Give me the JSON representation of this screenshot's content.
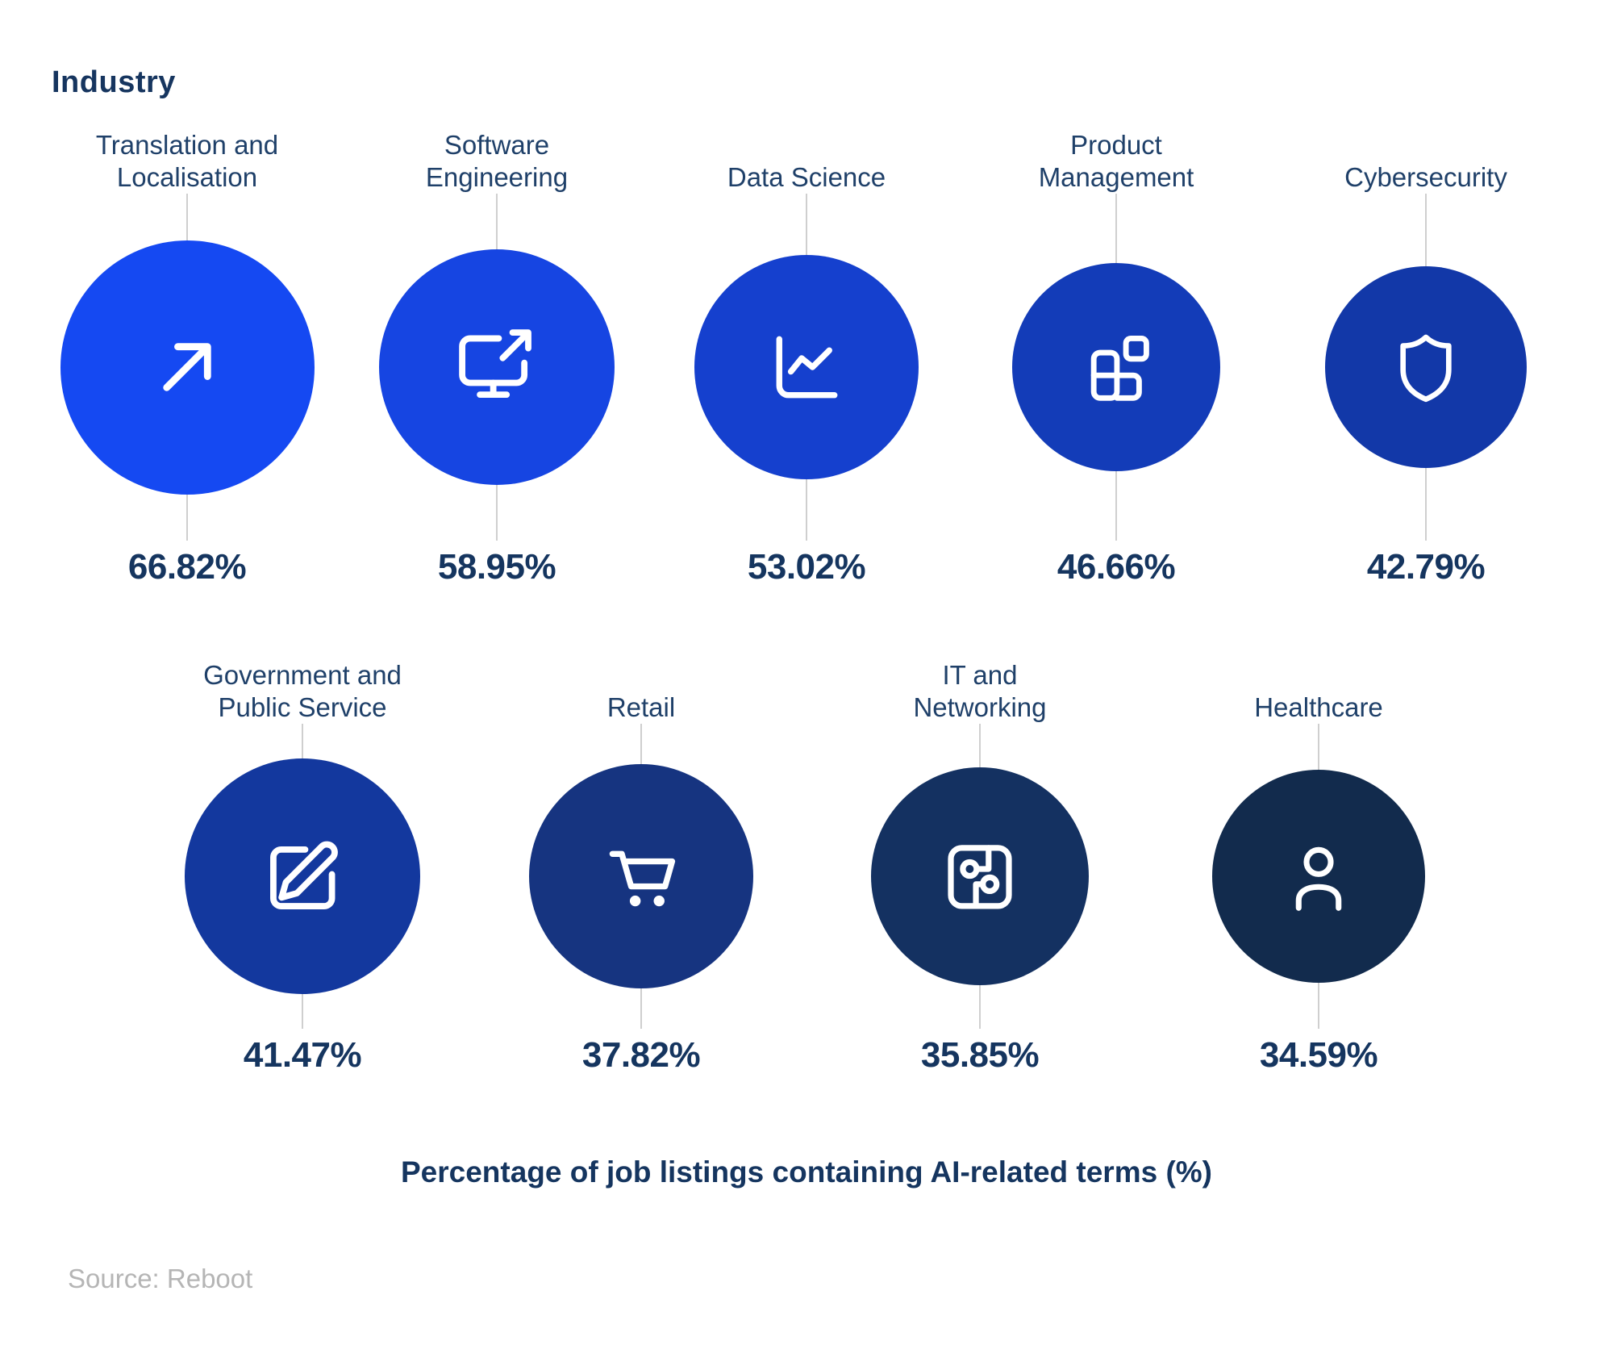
{
  "title": "Industry",
  "caption": "Percentage of job listings containing AI-related terms (%)",
  "source": "Source: Reboot",
  "tick_color": "#cfcfcf",
  "text_colors": {
    "heading": "#16355f",
    "label": "#1f4069",
    "value": "#15355f",
    "source": "#b5b5b5"
  },
  "chart_data": {
    "type": "bubble",
    "title": "Industry",
    "xlabel": "Percentage of job listings containing AI-related terms (%)",
    "legend_position": "none",
    "grid": false,
    "categories": [
      "Translation and Localisation",
      "Software Engineering",
      "Data Science",
      "Product Management",
      "Cybersecurity",
      "Government and Public Service",
      "Retail",
      "IT and Networking",
      "Healthcare"
    ],
    "values": [
      66.82,
      58.95,
      53.02,
      46.66,
      42.79,
      41.47,
      37.82,
      35.85,
      34.59
    ],
    "value_labels": [
      "66.82%",
      "58.95%",
      "53.02%",
      "46.66%",
      "42.79%",
      "41.47%",
      "37.82%",
      "35.85%",
      "34.59%"
    ],
    "colors": [
      "#1549f2",
      "#1645e2",
      "#1540ce",
      "#133cb8",
      "#1238a8",
      "#13389e",
      "#163480",
      "#143161",
      "#122b4d"
    ],
    "icons": [
      "arrow-up-right-icon",
      "monitor-share-icon",
      "line-chart-icon",
      "blocks-icon",
      "shield-icon",
      "edit-icon",
      "cart-icon",
      "circuit-icon",
      "user-icon"
    ],
    "source": "Source: Reboot"
  },
  "rows": [
    {
      "items": [
        {
          "label": "Translation and\nLocalisation",
          "value_text": "66.82%",
          "value": 66.82,
          "color": "#1549f2",
          "icon": "arrow-up-right-icon",
          "diameter": 315
        },
        {
          "label": "Software\nEngineering",
          "value_text": "58.95%",
          "value": 58.95,
          "color": "#1645e2",
          "icon": "monitor-share-icon",
          "diameter": 292
        },
        {
          "label": "Data Science",
          "value_text": "53.02%",
          "value": 53.02,
          "color": "#1540ce",
          "icon": "line-chart-icon",
          "diameter": 278
        },
        {
          "label": "Product\nManagement",
          "value_text": "46.66%",
          "value": 46.66,
          "color": "#133cb8",
          "icon": "blocks-icon",
          "diameter": 258
        },
        {
          "label": "Cybersecurity",
          "value_text": "42.79%",
          "value": 42.79,
          "color": "#1238a8",
          "icon": "shield-icon",
          "diameter": 250
        }
      ]
    },
    {
      "items": [
        {
          "label": "Government and\nPublic Service",
          "value_text": "41.47%",
          "value": 41.47,
          "color": "#13389e",
          "icon": "edit-icon",
          "diameter": 292
        },
        {
          "label": "Retail",
          "value_text": "37.82%",
          "value": 37.82,
          "color": "#163480",
          "icon": "cart-icon",
          "diameter": 278
        },
        {
          "label": "IT and\nNetworking",
          "value_text": "35.85%",
          "value": 35.85,
          "color": "#143161",
          "icon": "circuit-icon",
          "diameter": 270
        },
        {
          "label": "Healthcare",
          "value_text": "34.59%",
          "value": 34.59,
          "color": "#122b4d",
          "icon": "user-icon",
          "diameter": 264
        }
      ]
    }
  ]
}
